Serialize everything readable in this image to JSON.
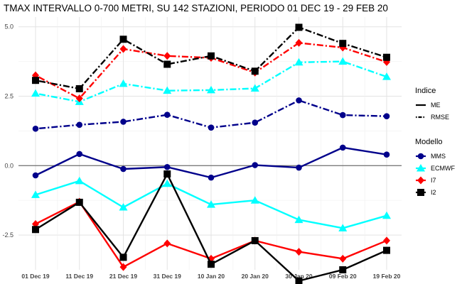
{
  "chart_data": {
    "type": "line",
    "title": "TMAX INTERVALLO 0-700 METRI, SU 142 STAZIONI, PERIODO 01 DEC 19  -  29 FEB 20",
    "xlabel": "",
    "ylabel": "",
    "categories": [
      "01 Dec 19",
      "11 Dec 19",
      "21 Dec 19",
      "31 Dec 19",
      "10 Jan 20",
      "20 Jan 20",
      "30 Jan 20",
      "09 Feb 20",
      "19 Feb 20"
    ],
    "yticks": [
      {
        "value": 5.0,
        "label": "5.0"
      },
      {
        "value": 2.5,
        "label": "2.5"
      },
      {
        "value": 0.0,
        "label": "0.0"
      },
      {
        "value": -2.5,
        "label": "-2.5"
      }
    ],
    "ylim": [
      -3.75,
      5.35
    ],
    "zero_line": true,
    "grid": true,
    "legend_placement": "right",
    "legend": {
      "linetype_title": "Indice",
      "linetypes": [
        {
          "name": "ME",
          "style": "solid"
        },
        {
          "name": "RMSE",
          "style": "dotdash"
        }
      ],
      "model_title": "Modello",
      "models": [
        {
          "name": "MMS",
          "color": "#00008b",
          "marker": "circle"
        },
        {
          "name": "ECMWF",
          "color": "#00ffff",
          "marker": "triangle"
        },
        {
          "name": "I7",
          "color": "#ff0000",
          "marker": "diamond"
        },
        {
          "name": "I2",
          "color": "#000000",
          "marker": "square"
        }
      ]
    },
    "series": [
      {
        "model": "MMS",
        "index": "ME",
        "values": [
          -0.35,
          0.42,
          -0.12,
          -0.05,
          -0.43,
          0.02,
          -0.07,
          0.65,
          0.4
        ]
      },
      {
        "model": "ECMWF",
        "index": "ME",
        "values": [
          -1.05,
          -0.55,
          -1.5,
          -0.65,
          -1.4,
          -1.25,
          -1.95,
          -2.25,
          -1.8
        ]
      },
      {
        "model": "I7",
        "index": "ME",
        "values": [
          -2.1,
          -1.3,
          -3.65,
          -2.8,
          -3.35,
          -2.7,
          -3.1,
          -3.35,
          -2.7
        ]
      },
      {
        "model": "I2",
        "index": "ME",
        "values": [
          -2.3,
          -1.32,
          -3.3,
          -0.3,
          -3.55,
          -2.7,
          -4.15,
          -3.75,
          -3.05
        ]
      },
      {
        "model": "MMS",
        "index": "RMSE",
        "values": [
          1.33,
          1.47,
          1.58,
          1.83,
          1.37,
          1.55,
          2.35,
          1.82,
          1.78
        ]
      },
      {
        "model": "ECMWF",
        "index": "RMSE",
        "values": [
          2.6,
          2.3,
          2.95,
          2.7,
          2.72,
          2.78,
          3.72,
          3.75,
          3.2
        ]
      },
      {
        "model": "I7",
        "index": "RMSE",
        "values": [
          3.25,
          2.42,
          4.2,
          3.95,
          3.88,
          3.35,
          4.42,
          4.25,
          3.73
        ]
      },
      {
        "model": "I2",
        "index": "RMSE",
        "values": [
          3.07,
          2.77,
          4.55,
          3.65,
          3.95,
          3.4,
          4.98,
          4.4,
          3.9
        ]
      }
    ]
  }
}
